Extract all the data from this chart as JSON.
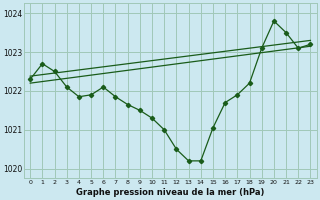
{
  "title": "Graphe pression niveau de la mer (hPa)",
  "bg_color": "#cce8f0",
  "plot_bg_color": "#cce8f0",
  "grid_color": "#a0c8b8",
  "line_color": "#1a5c1a",
  "x_labels": [
    "0",
    "1",
    "2",
    "3",
    "4",
    "5",
    "6",
    "7",
    "8",
    "9",
    "10",
    "11",
    "12",
    "13",
    "14",
    "15",
    "16",
    "17",
    "18",
    "19",
    "20",
    "21",
    "22",
    "23"
  ],
  "hours": [
    0,
    1,
    2,
    3,
    4,
    5,
    6,
    7,
    8,
    9,
    10,
    11,
    12,
    13,
    14,
    15,
    16,
    17,
    18,
    19,
    20,
    21,
    22,
    23
  ],
  "pressure": [
    1022.3,
    1022.7,
    1022.5,
    1022.1,
    1021.85,
    1021.9,
    1022.1,
    1021.85,
    1021.65,
    1021.5,
    1021.3,
    1021.0,
    1020.5,
    1020.2,
    1020.2,
    1021.05,
    1021.7,
    1021.9,
    1022.2,
    1023.1,
    1023.8,
    1023.5,
    1023.1,
    1023.2
  ],
  "trend1": [
    1022.2,
    1023.15
  ],
  "trend2": [
    1022.38,
    1023.3
  ],
  "ylim": [
    1019.75,
    1024.25
  ],
  "yticks": [
    1020,
    1021,
    1022,
    1023,
    1024
  ],
  "figsize": [
    3.2,
    2.0
  ],
  "dpi": 100
}
